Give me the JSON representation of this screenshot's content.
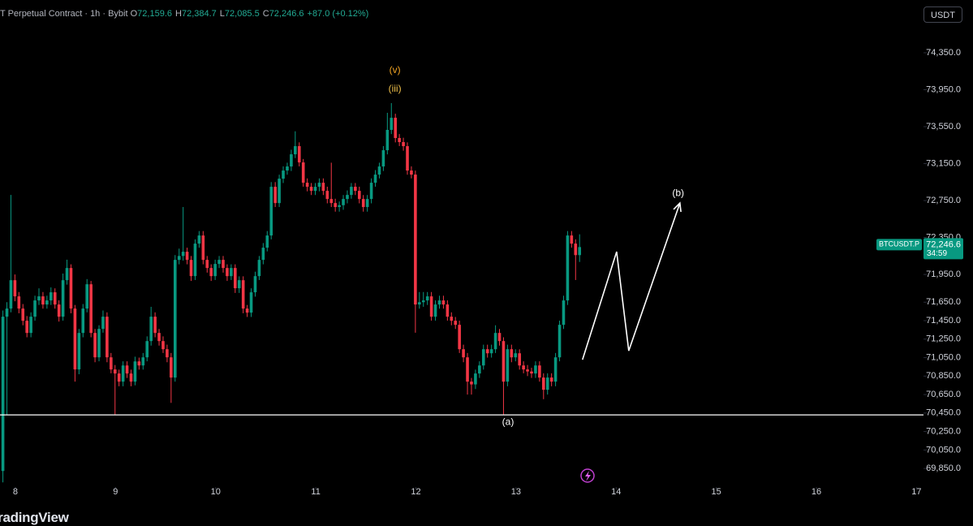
{
  "chart_data": {
    "type": "candlestick",
    "title": "T Perpetual Contract · 1h · Bybit",
    "ohlc_header": [
      {
        "label": "O",
        "value": "72,159.6"
      },
      {
        "label": "H",
        "value": "72,384.7"
      },
      {
        "label": "L",
        "value": "72,085.5"
      },
      {
        "label": "C",
        "value": "72,246.6"
      }
    ],
    "change": "+87.0 (+0.12%)",
    "currency": "USDT",
    "brand": "TradingView",
    "up_color": "#089981",
    "down_color": "#f23645",
    "x": [
      7.875,
      7.915,
      7.955,
      7.995,
      8.035,
      8.075,
      8.115,
      8.155,
      8.195,
      8.235,
      8.275,
      8.315,
      8.355,
      8.395,
      8.435,
      8.475,
      8.515,
      8.555,
      8.595,
      8.635,
      8.675,
      8.715,
      8.755,
      8.795,
      8.835,
      8.875,
      8.915,
      8.955,
      8.995,
      9.035,
      9.075,
      9.115,
      9.155,
      9.195,
      9.235,
      9.275,
      9.315,
      9.355,
      9.395,
      9.435,
      9.475,
      9.515,
      9.555,
      9.595,
      9.635,
      9.675,
      9.715,
      9.755,
      9.795,
      9.835,
      9.875,
      9.915,
      9.955,
      9.995,
      10.035,
      10.075,
      10.115,
      10.155,
      10.195,
      10.235,
      10.275,
      10.315,
      10.355,
      10.395,
      10.435,
      10.475,
      10.515,
      10.555,
      10.595,
      10.635,
      10.675,
      10.715,
      10.755,
      10.795,
      10.835,
      10.875,
      10.915,
      10.955,
      10.995,
      11.035,
      11.075,
      11.115,
      11.155,
      11.195,
      11.235,
      11.275,
      11.315,
      11.355,
      11.395,
      11.435,
      11.475,
      11.515,
      11.555,
      11.595,
      11.635,
      11.675,
      11.715,
      11.755,
      11.795,
      11.835,
      11.875,
      11.915,
      11.955,
      11.995,
      12.035,
      12.075,
      12.115,
      12.155,
      12.195,
      12.235,
      12.275,
      12.315,
      12.355,
      12.395,
      12.435,
      12.475,
      12.515,
      12.555,
      12.595,
      12.635,
      12.675,
      12.715,
      12.755,
      12.795,
      12.835,
      12.875,
      12.915,
      12.955,
      12.995,
      13.035,
      13.075,
      13.115,
      13.155,
      13.195,
      13.235,
      13.275,
      13.315,
      13.355,
      13.395,
      13.435,
      13.475,
      13.515,
      13.555,
      13.595,
      13.635
    ],
    "open": [
      69823,
      71493,
      71581,
      71888,
      71713,
      71581,
      71449,
      71317,
      71493,
      71669,
      71713,
      71625,
      71669,
      71757,
      71625,
      71493,
      71888,
      72020,
      71581,
      70922,
      71317,
      71581,
      71844,
      71317,
      71053,
      71361,
      71493,
      71053,
      70922,
      70878,
      70790,
      70965,
      70878,
      70790,
      71009,
      70965,
      71053,
      71229,
      71493,
      71317,
      71229,
      71141,
      71053,
      70834,
      72108,
      72150,
      72196,
      72108,
      71932,
      72284,
      72372,
      72108,
      72020,
      71932,
      72064,
      72108,
      72020,
      71932,
      72020,
      71801,
      71888,
      71581,
      71537,
      71757,
      71932,
      72108,
      72240,
      72372,
      72899,
      72723,
      72987,
      73075,
      73119,
      73251,
      73339,
      73163,
      72943,
      72899,
      72855,
      72899,
      72943,
      72855,
      72767,
      72723,
      72680,
      72700,
      72767,
      72811,
      72899,
      72855,
      72767,
      72680,
      72767,
      72943,
      73031,
      73119,
      73295,
      73515,
      73646,
      73427,
      73383,
      73339,
      73075,
      73031,
      71625,
      71650,
      71669,
      71713,
      71493,
      71625,
      71669,
      71625,
      71493,
      71449,
      71405,
      71141,
      71053,
      70790,
      70760,
      70878,
      70965,
      71141,
      71097,
      71141,
      71317,
      71229,
      70790,
      71141,
      71053,
      71097,
      70965,
      70922,
      70900,
      70878,
      70965,
      70834,
      70702,
      70834,
      70790,
      71053,
      71405,
      71669,
      72372,
      72284,
      72159.6
    ],
    "high": [
      71560,
      71650,
      72811,
      71950,
      71760,
      71630,
      71500,
      71540,
      71720,
      71800,
      71760,
      71720,
      71810,
      71800,
      71670,
      71960,
      72110,
      72060,
      71620,
      71360,
      71630,
      71900,
      71880,
      71360,
      71400,
      71560,
      71540,
      71100,
      70970,
      70920,
      71010,
      71010,
      70920,
      71060,
      71050,
      71100,
      71280,
      71600,
      71540,
      71360,
      71280,
      71190,
      71100,
      72160,
      72230,
      72680,
      72240,
      72150,
      72330,
      72420,
      72420,
      72150,
      72060,
      72110,
      72150,
      72150,
      72060,
      72060,
      72060,
      71930,
      71930,
      71620,
      71800,
      71980,
      72150,
      72290,
      72420,
      72950,
      72950,
      73030,
      73120,
      73160,
      73300,
      73500,
      73380,
      73200,
      72990,
      72940,
      72940,
      72990,
      72990,
      72900,
      73160,
      72770,
      72740,
      72810,
      72860,
      72940,
      72940,
      72900,
      72810,
      72810,
      72990,
      73080,
      73160,
      73340,
      73700,
      73805,
      73690,
      73470,
      73430,
      73380,
      73120,
      73075,
      71760,
      71760,
      71760,
      71760,
      71670,
      71720,
      71720,
      71670,
      71540,
      71490,
      71450,
      71190,
      71100,
      70830,
      70920,
      71010,
      71190,
      71190,
      71190,
      71400,
      71360,
      71270,
      71190,
      71190,
      71140,
      71140,
      71010,
      70970,
      70940,
      71010,
      71010,
      70880,
      70880,
      70880,
      71100,
      71450,
      71720,
      72420,
      72420,
      72330,
      72384.7
    ],
    "low": [
      69700,
      70430,
      71540,
      71660,
      71530,
      71400,
      71270,
      71270,
      71450,
      71620,
      71580,
      71580,
      71620,
      71580,
      71440,
      71450,
      71840,
      71530,
      70790,
      70870,
      71270,
      71540,
      71270,
      71000,
      71010,
      71320,
      71000,
      70880,
      70430,
      70740,
      70740,
      70830,
      70740,
      70750,
      70920,
      70920,
      71010,
      71180,
      71270,
      71180,
      71100,
      71000,
      70560,
      70790,
      72060,
      72100,
      72060,
      71880,
      71890,
      72240,
      72060,
      71970,
      71880,
      71890,
      72020,
      71970,
      71880,
      71890,
      71750,
      71750,
      71530,
      71490,
      71490,
      71710,
      71890,
      72060,
      72200,
      72330,
      72680,
      72680,
      72940,
      73030,
      73070,
      73210,
      73120,
      72900,
      72850,
      72810,
      72810,
      72850,
      72810,
      72720,
      72680,
      72630,
      72630,
      72650,
      72720,
      72770,
      72810,
      72720,
      72630,
      72630,
      72720,
      72900,
      72990,
      73070,
      73250,
      73470,
      73380,
      73340,
      73290,
      73030,
      72990,
      71320,
      71580,
      71600,
      71620,
      71450,
      71450,
      71580,
      71580,
      71450,
      71400,
      71360,
      71100,
      71000,
      70650,
      70650,
      70710,
      70830,
      70920,
      71050,
      71050,
      71100,
      71180,
      70430,
      70740,
      71000,
      71010,
      70920,
      70880,
      70850,
      70830,
      70830,
      70790,
      70600,
      70650,
      70740,
      70740,
      71010,
      71360,
      71620,
      72240,
      71890,
      72085.5
    ],
    "close": [
      71493,
      71581,
      71888,
      71713,
      71581,
      71449,
      71317,
      71493,
      71669,
      71713,
      71625,
      71669,
      71757,
      71625,
      71493,
      71888,
      72020,
      71581,
      70922,
      71317,
      71581,
      71844,
      71317,
      71053,
      71361,
      71493,
      71053,
      70922,
      70878,
      70790,
      70965,
      70878,
      70790,
      71009,
      70965,
      71053,
      71229,
      71493,
      71317,
      71229,
      71141,
      71053,
      70834,
      72108,
      72150,
      72196,
      72108,
      71932,
      72284,
      72372,
      72108,
      72020,
      71932,
      72064,
      72108,
      72020,
      71932,
      72020,
      71801,
      71888,
      71581,
      71537,
      71757,
      71932,
      72108,
      72240,
      72372,
      72899,
      72723,
      72987,
      73075,
      73119,
      73251,
      73339,
      73163,
      72943,
      72899,
      72855,
      72899,
      72943,
      72855,
      72767,
      72723,
      72680,
      72700,
      72767,
      72811,
      72899,
      72855,
      72767,
      72680,
      72767,
      72943,
      73031,
      73119,
      73295,
      73515,
      73646,
      73427,
      73383,
      73339,
      73075,
      73031,
      71625,
      71650,
      71669,
      71713,
      71493,
      71625,
      71669,
      71625,
      71493,
      71449,
      71405,
      71141,
      71053,
      70790,
      70760,
      70878,
      70965,
      71141,
      71097,
      71141,
      71317,
      71229,
      70790,
      71141,
      71053,
      71097,
      70965,
      70922,
      70900,
      70878,
      70965,
      70834,
      70702,
      70834,
      70790,
      71053,
      71405,
      71669,
      72372,
      72284,
      72159.6,
      72246.6
    ],
    "xlim": [
      7.846,
      17.07
    ],
    "xticks": [
      8,
      9,
      10,
      11,
      12,
      13,
      14,
      15,
      16,
      17
    ],
    "ylim": [
      69649,
      74921
    ],
    "yticks": [
      {
        "value": 74350,
        "label": "74,350.0"
      },
      {
        "value": 73950,
        "label": "73,950.0"
      },
      {
        "value": 73550,
        "label": "73,550.0"
      },
      {
        "value": 73150,
        "label": "73,150.0"
      },
      {
        "value": 72750,
        "label": "72,750.0"
      },
      {
        "value": 72350,
        "label": "72,350.0"
      },
      {
        "value": 71950,
        "label": "71,950.0"
      },
      {
        "value": 71650,
        "label": "71,650.0"
      },
      {
        "value": 71450,
        "label": "71,450.0"
      },
      {
        "value": 71250,
        "label": "71,250.0"
      },
      {
        "value": 71050,
        "label": "71,050.0"
      },
      {
        "value": 70850,
        "label": "70,850.0"
      },
      {
        "value": 70650,
        "label": "70,650.0"
      },
      {
        "value": 70450,
        "label": "70,450.0"
      },
      {
        "value": 70250,
        "label": "70,250.0"
      },
      {
        "value": 70050,
        "label": "70,050.0"
      },
      {
        "value": 69850,
        "label": "69,850.0"
      }
    ],
    "hline": {
      "value": 70430,
      "color": "#ffffff"
    },
    "annotations": [
      {
        "text": "(v)",
        "x": 11.79,
        "y": 74156,
        "color": "#f5a623"
      },
      {
        "text": "(iii)",
        "x": 11.79,
        "y": 73954,
        "color": "#f0c14b"
      },
      {
        "text": "(a)",
        "x": 12.92,
        "y": 70350,
        "color": "#ffffff"
      },
      {
        "text": "(b)",
        "x": 14.62,
        "y": 72829,
        "color": "#ffffff"
      }
    ],
    "projection": {
      "x": [
        13.664,
        14.005,
        14.126,
        14.637
      ],
      "y": [
        71027,
        72196,
        71124,
        72723
      ],
      "color": "#ffffff"
    },
    "price_tag": {
      "symbol": "BTCUSDT.P",
      "price": "72,246.6",
      "countdown": "34:59"
    }
  }
}
